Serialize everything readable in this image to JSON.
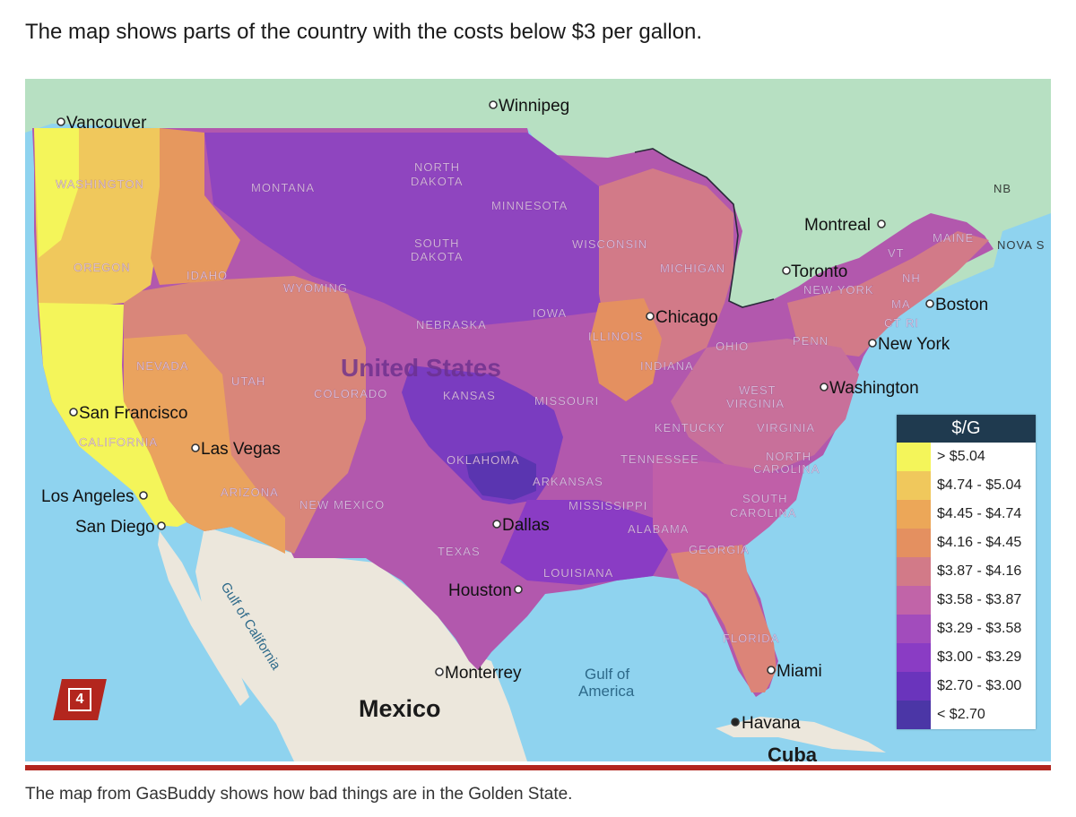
{
  "headline": "The map shows parts of the country with the costs below $3 per gallon.",
  "caption": "The map from GasBuddy shows how bad things are in the Golden State.",
  "badge_number": "4",
  "map": {
    "country_label": "United States",
    "big_labels": {
      "mexico": "Mexico",
      "cuba": "Cuba"
    },
    "water_labels": {
      "gulf_of_america_1": "Gulf of",
      "gulf_of_america_2": "America",
      "gulf_of_california": "Gulf of California"
    },
    "states": {
      "washington": "WASHINGTON",
      "oregon": "OREGON",
      "california": "CALIFORNIA",
      "nevada": "NEVADA",
      "idaho": "IDAHO",
      "montana": "MONTANA",
      "wyoming": "WYOMING",
      "utah": "UTAH",
      "arizona": "ARIZONA",
      "colorado": "COLORADO",
      "new_mexico": "NEW MEXICO",
      "north_dakota_1": "NORTH",
      "north_dakota_2": "DAKOTA",
      "south_dakota_1": "SOUTH",
      "south_dakota_2": "DAKOTA",
      "nebraska": "NEBRASKA",
      "kansas": "KANSAS",
      "oklahoma": "OKLAHOMA",
      "texas": "TEXAS",
      "minnesota": "MINNESOTA",
      "iowa": "IOWA",
      "missouri": "MISSOURI",
      "arkansas": "ARKANSAS",
      "louisiana": "LOUISIANA",
      "wisconsin": "WISCONSIN",
      "illinois": "ILLINOIS",
      "michigan": "MICHIGAN",
      "indiana": "INDIANA",
      "ohio": "OHIO",
      "kentucky": "KENTUCKY",
      "tennessee": "TENNESSEE",
      "mississippi": "MISSISSIPPI",
      "alabama": "ALABAMA",
      "georgia": "GEORGIA",
      "florida": "FLORIDA",
      "south_carolina_1": "SOUTH",
      "south_carolina_2": "CAROLINA",
      "north_carolina_1": "NORTH",
      "north_carolina_2": "CAROLINA",
      "virginia": "VIRGINIA",
      "west_virginia_1": "WEST",
      "west_virginia_2": "VIRGINIA",
      "penn": "PENN",
      "new_york": "NEW YORK",
      "vt": "VT",
      "nh": "NH",
      "ma": "MA",
      "ct": "CT",
      "ri": "RI",
      "maine": "MAINE",
      "nb": "NB",
      "nova_scotia": "NOVA S"
    },
    "cities": {
      "vancouver": "Vancouver",
      "winnipeg": "Winnipeg",
      "montreal": "Montreal",
      "toronto": "Toronto",
      "boston": "Boston",
      "new_york": "New York",
      "washington": "Washington",
      "chicago": "Chicago",
      "san_francisco": "San Francisco",
      "las_vegas": "Las Vegas",
      "los_angeles": "Los Angeles",
      "san_diego": "San Diego",
      "dallas": "Dallas",
      "houston": "Houston",
      "monterrey": "Monterrey",
      "miami": "Miami",
      "havana": "Havana"
    },
    "colors": {
      "water": "#8fd3ef",
      "land_canada": "#b7e0c2",
      "land_mexico": "#ece7dc",
      "gt_5_04": "#f4f55a",
      "4_74_5_04": "#f0c85c",
      "4_45_4_74": "#eca758",
      "4_16_4_45": "#e49060",
      "3_87_4_16": "#d27a88",
      "3_58_3_87": "#c164a8",
      "3_29_3_58": "#a24cbc",
      "3_00_3_29": "#8a3cc4",
      "2_70_3_00": "#6a34bc",
      "lt_2_70": "#4b36a6"
    }
  },
  "legend": {
    "title": "$/G",
    "items": [
      {
        "label": "> $5.04",
        "color": "#f4f55a"
      },
      {
        "label": "$4.74 - $5.04",
        "color": "#f0c85c"
      },
      {
        "label": "$4.45 - $4.74",
        "color": "#eca758"
      },
      {
        "label": "$4.16 - $4.45",
        "color": "#e49060"
      },
      {
        "label": "$3.87 - $4.16",
        "color": "#d27a88"
      },
      {
        "label": "$3.58 - $3.87",
        "color": "#c164a8"
      },
      {
        "label": "$3.29 - $3.58",
        "color": "#a24cbc"
      },
      {
        "label": "$3.00 - $3.29",
        "color": "#8a3cc4"
      },
      {
        "label": "$2.70 - $3.00",
        "color": "#6a34bc"
      },
      {
        "label": "< $2.70",
        "color": "#4b36a6"
      }
    ]
  }
}
